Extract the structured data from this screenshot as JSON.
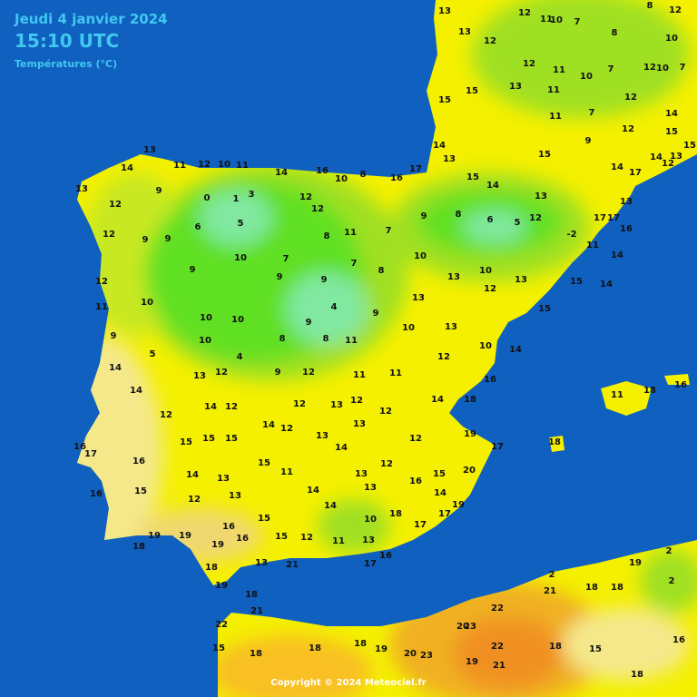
{
  "header": {
    "date": "Jeudi 4 janvier 2024",
    "time": "15:10 UTC",
    "subtitle": "Températures (°C)"
  },
  "stations": [
    13,
    14,
    11,
    12,
    10,
    11,
    14,
    16,
    13,
    12,
    9,
    0,
    1,
    3,
    5,
    6,
    12,
    9,
    9,
    10,
    7,
    8,
    11,
    7,
    9,
    8,
    6,
    5,
    12,
    -2,
    11,
    13,
    12,
    9,
    9,
    9,
    7,
    8,
    10,
    13,
    10,
    11,
    10,
    10,
    10,
    9,
    4,
    9,
    13,
    12,
    13,
    15,
    15,
    9,
    5,
    10,
    4,
    8,
    8,
    11,
    10,
    13,
    10,
    14,
    14,
    13,
    12,
    9,
    12,
    11,
    11,
    12,
    16,
    14,
    12,
    14,
    12,
    12,
    13,
    12,
    12,
    14,
    18,
    11,
    18,
    16,
    14,
    12,
    13,
    13,
    12,
    19,
    17,
    18,
    16,
    17,
    15,
    15,
    15,
    14,
    16,
    14,
    13,
    15,
    11,
    13,
    12,
    16,
    15,
    20,
    16,
    15,
    12,
    13,
    14,
    14,
    13,
    14,
    19,
    19,
    19,
    16,
    15,
    15,
    12,
    11,
    10,
    18,
    17,
    17,
    18,
    19,
    16,
    13,
    21,
    13,
    17,
    16,
    18,
    19,
    18,
    21,
    22,
    18,
    15,
    18,
    18,
    19,
    20,
    23,
    20,
    22,
    23,
    22,
    18,
    15,
    19,
    21,
    2,
    21,
    18,
    18,
    19,
    2,
    2,
    16,
    18,
    12,
    11,
    10,
    7,
    8,
    8,
    12,
    10,
    13,
    13,
    12,
    12,
    11,
    10,
    7,
    12,
    10,
    7,
    13,
    11,
    11,
    7,
    12,
    14,
    12,
    15,
    15,
    15,
    9,
    14,
    17,
    14,
    13,
    12,
    15,
    15,
    14,
    13,
    15,
    14,
    13,
    17,
    17,
    16,
    14,
    14,
    17,
    16,
    8,
    10,
    12,
    12
  ],
  "copyright": "Copyright © 2024 Meteociel.fr"
}
